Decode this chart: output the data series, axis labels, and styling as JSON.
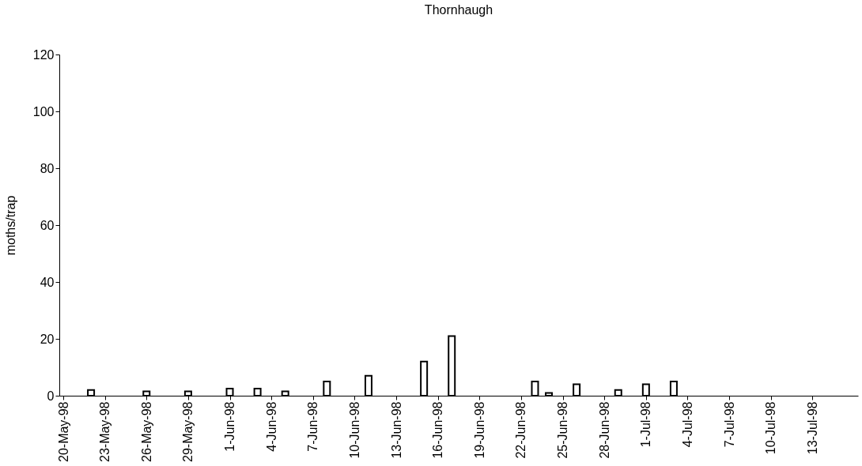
{
  "chart_data": {
    "type": "bar",
    "title": "Thornhaugh",
    "ylabel": "moths/trap",
    "x": [
      "1998-05-22",
      "1998-05-26",
      "1998-05-29",
      "1998-06-01",
      "1998-06-03",
      "1998-06-05",
      "1998-06-08",
      "1998-06-11",
      "1998-06-15",
      "1998-06-17",
      "1998-06-23",
      "1998-06-24",
      "1998-06-26",
      "1998-06-29",
      "1998-07-01",
      "1998-07-03"
    ],
    "values": [
      2,
      1.5,
      1.5,
      2.5,
      2.5,
      1.5,
      5,
      7,
      12,
      21,
      5,
      1,
      4,
      2,
      4,
      5
    ],
    "color": "#ffffff",
    "xlim": [
      "1998-05-20",
      "1998-07-16"
    ],
    "xticks": [
      {
        "value": "1998-05-20",
        "label": "20-May-98"
      },
      {
        "value": "1998-05-23",
        "label": "23-May-98"
      },
      {
        "value": "1998-05-26",
        "label": "26-May-98"
      },
      {
        "value": "1998-05-29",
        "label": "29-May-98"
      },
      {
        "value": "1998-06-01",
        "label": "1-Jun-98"
      },
      {
        "value": "1998-06-04",
        "label": "4-Jun-98"
      },
      {
        "value": "1998-06-07",
        "label": "7-Jun-98"
      },
      {
        "value": "1998-06-10",
        "label": "10-Jun-98"
      },
      {
        "value": "1998-06-13",
        "label": "13-Jun-98"
      },
      {
        "value": "1998-06-16",
        "label": "16-Jun-98"
      },
      {
        "value": "1998-06-19",
        "label": "19-Jun-98"
      },
      {
        "value": "1998-06-22",
        "label": "22-Jun-98"
      },
      {
        "value": "1998-06-25",
        "label": "25-Jun-98"
      },
      {
        "value": "1998-06-28",
        "label": "28-Jun-98"
      },
      {
        "value": "1998-07-01",
        "label": "1-Jul-98"
      },
      {
        "value": "1998-07-04",
        "label": "4-Jul-98"
      },
      {
        "value": "1998-07-07",
        "label": "7-Jul-98"
      },
      {
        "value": "1998-07-10",
        "label": "10-Jul-98"
      },
      {
        "value": "1998-07-13",
        "label": "13-Jul-98"
      }
    ],
    "ylim": [
      0,
      120
    ],
    "yticks": [
      0,
      20,
      40,
      60,
      80,
      100,
      120
    ],
    "grid": false
  }
}
